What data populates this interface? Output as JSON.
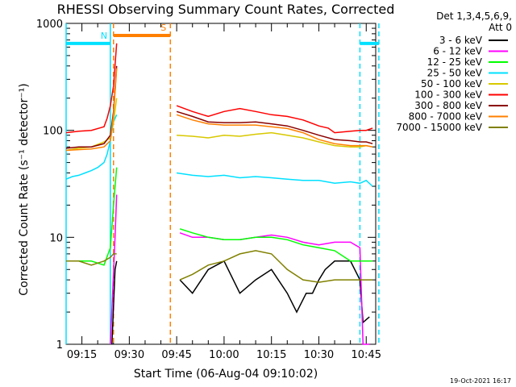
{
  "chart_data": {
    "type": "line",
    "title": "RHESSI Observing Summary Count Rates, Corrected",
    "xlabel": "Start Time (06-Aug-04 09:10:02)",
    "ylabel": "Corrected Count Rate (s⁻¹ detector⁻¹)",
    "y_scale": "log",
    "ylim": [
      1,
      1000
    ],
    "xlim": [
      "09:10",
      "10:48"
    ],
    "x_ticks": [
      "09:15",
      "09:30",
      "09:45",
      "10:00",
      "10:15",
      "10:30",
      "10:45"
    ],
    "y_ticks": [
      "1",
      "10",
      "100",
      "1000"
    ],
    "legend_header": [
      "Det 1,3,4,5,6,9,",
      "Att 0"
    ],
    "legend_position": "right",
    "timestamp": "19-Oct-2021 16:17",
    "x_unit_note": "x values in minutes after 09:00",
    "series": [
      {
        "name": "3 - 6 keV",
        "color": "#000000",
        "x": [
          10,
          14,
          18,
          22,
          24.5,
          25.5,
          26,
          43,
          46,
          50,
          55,
          60,
          65,
          70,
          75,
          80,
          83,
          86,
          88,
          90,
          92,
          95,
          100,
          103,
          104,
          105,
          106,
          107
        ],
        "y": [
          null,
          null,
          null,
          null,
          1,
          5,
          6,
          null,
          4,
          3,
          5,
          6,
          3,
          4,
          5,
          3,
          2,
          3,
          3,
          4,
          5,
          6,
          6,
          4,
          1.6,
          1.7,
          1.8,
          null
        ]
      },
      {
        "name": "6 - 12 keV",
        "color": "#ff00ff",
        "x": [
          10,
          14,
          18,
          22,
          24,
          25.5,
          26,
          43,
          46,
          50,
          55,
          60,
          65,
          70,
          75,
          80,
          85,
          90,
          95,
          100,
          103,
          104,
          106,
          107
        ],
        "y": [
          null,
          null,
          null,
          null,
          1,
          10,
          25,
          null,
          11,
          10,
          10,
          9.5,
          9.5,
          10,
          10.5,
          10,
          9,
          8.5,
          9,
          9,
          8,
          1,
          1,
          null
        ]
      },
      {
        "name": "12 - 25 keV",
        "color": "#00ff00",
        "x": [
          10,
          14,
          18,
          22,
          24,
          25,
          26,
          43,
          46,
          50,
          55,
          60,
          65,
          70,
          75,
          80,
          85,
          90,
          95,
          100,
          103,
          104,
          106,
          107
        ],
        "y": [
          6,
          6,
          6,
          5.5,
          8,
          20,
          45,
          null,
          12,
          11,
          10,
          9.5,
          9.5,
          10,
          10,
          9.5,
          8.5,
          8,
          7.5,
          6,
          6,
          6,
          6,
          6
        ]
      },
      {
        "name": "25 - 50 keV",
        "color": "#00e0ff",
        "x": [
          10,
          12,
          14,
          16,
          18,
          20,
          22,
          23,
          24,
          25,
          26,
          43,
          45,
          50,
          55,
          60,
          65,
          70,
          75,
          80,
          85,
          90,
          95,
          100,
          103,
          105,
          107
        ],
        "y": [
          35,
          37,
          38,
          40,
          42,
          45,
          50,
          60,
          80,
          120,
          140,
          null,
          40,
          38,
          37,
          38,
          36,
          37,
          36,
          35,
          34,
          34,
          32,
          33,
          32,
          34,
          30
        ]
      },
      {
        "name": "50 - 100 keV",
        "color": "#d8c800",
        "x": [
          10,
          14,
          18,
          22,
          24,
          25,
          26,
          43,
          45,
          50,
          55,
          60,
          65,
          70,
          75,
          80,
          85,
          90,
          95,
          100,
          103,
          105,
          107
        ],
        "y": [
          65,
          68,
          70,
          78,
          85,
          120,
          200,
          null,
          90,
          88,
          85,
          90,
          88,
          92,
          95,
          90,
          85,
          78,
          72,
          70,
          70,
          72,
          70
        ]
      },
      {
        "name": "100 - 300 keV",
        "color": "#ff0000",
        "x": [
          10,
          14,
          18,
          22,
          23,
          24,
          25,
          26,
          43,
          45,
          50,
          55,
          60,
          65,
          70,
          75,
          80,
          85,
          90,
          93,
          95,
          100,
          103,
          105,
          107
        ],
        "y": [
          95,
          98,
          100,
          108,
          130,
          170,
          260,
          650,
          null,
          170,
          150,
          135,
          150,
          160,
          150,
          140,
          135,
          125,
          110,
          105,
          95,
          98,
          100,
          100,
          105
        ]
      },
      {
        "name": "300 - 800 keV",
        "color": "#8b0000",
        "x": [
          10,
          14,
          18,
          22,
          24,
          25,
          26,
          43,
          45,
          50,
          55,
          60,
          65,
          70,
          75,
          80,
          85,
          90,
          95,
          100,
          103,
          105,
          107
        ],
        "y": [
          68,
          70,
          70,
          75,
          90,
          150,
          400,
          null,
          150,
          135,
          120,
          118,
          118,
          120,
          115,
          110,
          100,
          90,
          82,
          80,
          78,
          78,
          75
        ]
      },
      {
        "name": "800 - 7000 keV",
        "color": "#ff8000",
        "x": [
          10,
          14,
          18,
          22,
          24,
          25,
          26,
          43,
          45,
          50,
          55,
          60,
          65,
          70,
          75,
          80,
          85,
          90,
          95,
          100,
          103,
          105,
          107
        ],
        "y": [
          65,
          66,
          67,
          70,
          80,
          140,
          380,
          null,
          140,
          125,
          115,
          112,
          112,
          112,
          108,
          104,
          95,
          82,
          75,
          72,
          72,
          72,
          70
        ]
      },
      {
        "name": "7000 - 15000 keV",
        "color": "#808000",
        "x": [
          10,
          14,
          18,
          22,
          24,
          25,
          26,
          43,
          46,
          50,
          55,
          60,
          65,
          70,
          75,
          80,
          85,
          90,
          95,
          100,
          103,
          105,
          107
        ],
        "y": [
          6,
          6,
          5.5,
          6,
          6.5,
          7,
          7,
          null,
          4,
          4.5,
          5.5,
          6,
          7,
          7.5,
          7,
          5,
          4,
          3.8,
          4,
          4,
          4,
          4,
          4
        ]
      }
    ],
    "flags": [
      {
        "label": "S",
        "color": "#ff8000",
        "level": 770,
        "start": 25,
        "end": 43,
        "boundary_start": 25,
        "boundary_end": 43,
        "boundary_style": "dashed"
      },
      {
        "label": "N",
        "color": "#00e0ff",
        "level": 650,
        "start": 10,
        "end": 24,
        "boundary_start": 10,
        "boundary_end": 24,
        "boundary_style": "solid"
      },
      {
        "label": "",
        "color": "#00e0ff",
        "level": 650,
        "start": 103,
        "end": 109,
        "boundary_start": 103,
        "boundary_end": 109,
        "boundary_style": "dashed"
      }
    ]
  }
}
